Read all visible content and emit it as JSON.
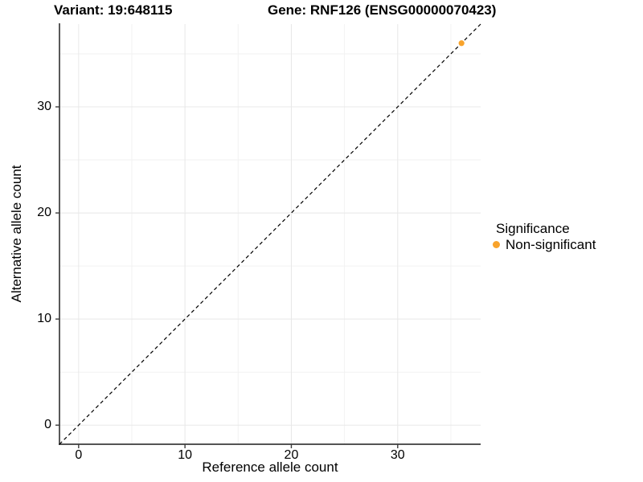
{
  "chart_data": {
    "type": "scatter",
    "titles": {
      "left": "Variant: 19:648115",
      "right": "Gene: RNF126 (ENSG00000070423)"
    },
    "xlabel": "Reference allele count",
    "ylabel": "Alternative allele count",
    "xlim": [
      -1.8,
      37.8
    ],
    "ylim": [
      -1.8,
      37.8
    ],
    "x_ticks": [
      0,
      10,
      20,
      30
    ],
    "y_ticks": [
      0,
      10,
      20,
      30
    ],
    "x_minor_ticks": [
      5,
      15,
      25,
      35
    ],
    "y_minor_ticks": [
      5,
      15,
      25,
      35
    ],
    "grid": true,
    "points": [
      {
        "x": 36,
        "y": 36,
        "series": "Non-significant"
      }
    ],
    "reference_line": {
      "style": "dashed",
      "x1": -1.8,
      "y1": -1.8,
      "x2": 37.8,
      "y2": 37.8
    },
    "legend": {
      "position": "right",
      "title": "Significance",
      "items": [
        {
          "label": "Non-significant",
          "color": "#F8A32B"
        }
      ]
    },
    "colors": {
      "point": "#F8A32B",
      "axis_line": "#3c3c3c",
      "grid_major": "#e8e8e8",
      "grid_minor": "#f2f2f2",
      "reference_line": "#000000",
      "text": "#000000",
      "background": "#ffffff"
    }
  }
}
